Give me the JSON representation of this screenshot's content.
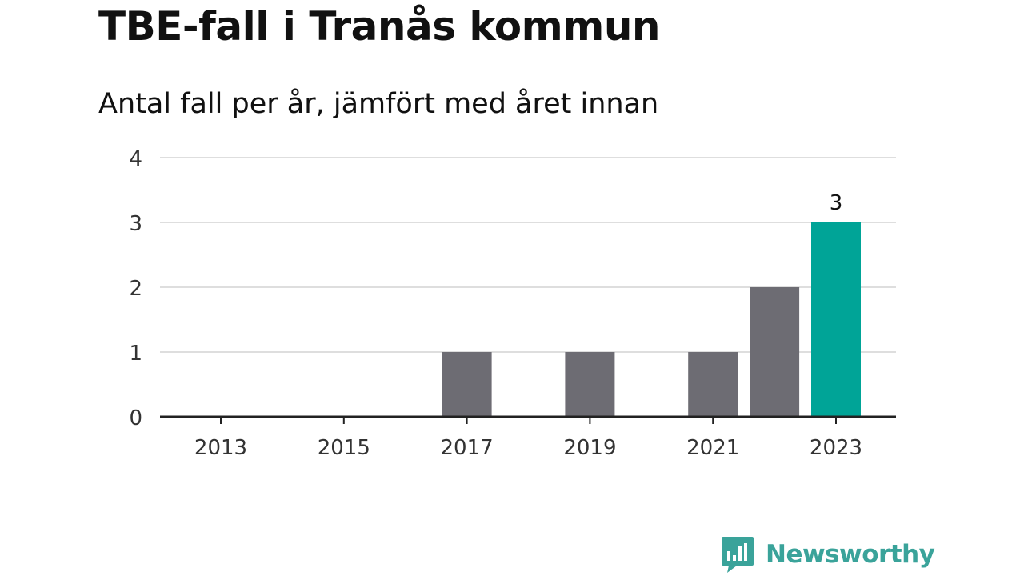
{
  "chart_data": {
    "type": "bar",
    "title": "TBE-fall i Tranås kommun",
    "subtitle": "Antal fall per år, jämfört med året innan",
    "xlabel": "",
    "ylabel": "",
    "categories": [
      "2013",
      "2014",
      "2015",
      "2016",
      "2017",
      "2018",
      "2019",
      "2020",
      "2021",
      "2022",
      "2023"
    ],
    "values": [
      0,
      0,
      0,
      0,
      1,
      0,
      1,
      0,
      1,
      2,
      3
    ],
    "x_tick_labels": [
      "2013",
      "2015",
      "2017",
      "2019",
      "2021",
      "2023"
    ],
    "y_ticks": [
      0,
      1,
      2,
      3,
      4
    ],
    "ylim": [
      0,
      4
    ],
    "grid": true,
    "highlight_category": "2023",
    "data_labels": [
      {
        "category": "2023",
        "text": "3"
      }
    ],
    "colors": {
      "bar": "#6d6c73",
      "highlight": "#00a497",
      "grid": "#dedede",
      "axis": "#222222"
    }
  },
  "brand": {
    "name": "Newsworthy",
    "icon": "newsworthy-logo-icon",
    "color": "#3aa39a"
  }
}
